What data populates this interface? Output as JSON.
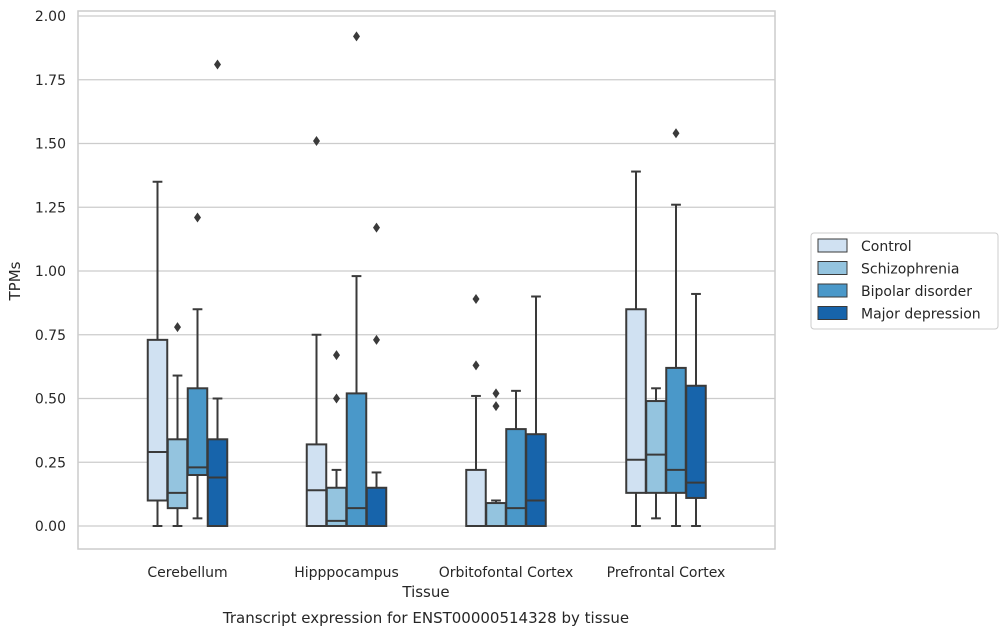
{
  "chart_data": {
    "type": "boxplot",
    "title": "Transcript expression for ENST00000514328 by tissue",
    "xlabel": "Tissue",
    "ylabel": "TPMs",
    "ylim": [
      -0.09,
      2.02
    ],
    "yticks": [
      "0.00",
      "0.25",
      "0.50",
      "0.75",
      "1.00",
      "1.25",
      "1.50",
      "1.75",
      "2.00"
    ],
    "grid": "horizontal",
    "legend_position": "right",
    "categories": [
      "Cerebellum",
      "Hipppocampus",
      "Orbitofontal Cortex",
      "Prefrontal Cortex"
    ],
    "series": [
      {
        "name": "Control",
        "color": "#d0e1f2",
        "boxes": [
          {
            "whislo": 0.0,
            "q1": 0.1,
            "med": 0.29,
            "q3": 0.73,
            "whishi": 1.35,
            "fliers": []
          },
          {
            "whislo": 0.0,
            "q1": 0.0,
            "med": 0.14,
            "q3": 0.32,
            "whishi": 0.75,
            "fliers": [
              1.51
            ]
          },
          {
            "whislo": 0.0,
            "q1": 0.0,
            "med": 0.0,
            "q3": 0.22,
            "whishi": 0.51,
            "fliers": [
              0.63,
              0.89
            ]
          },
          {
            "whislo": 0.0,
            "q1": 0.13,
            "med": 0.26,
            "q3": 0.85,
            "whishi": 1.39,
            "fliers": []
          }
        ]
      },
      {
        "name": "Schizophrenia",
        "color": "#94c4df",
        "boxes": [
          {
            "whislo": 0.0,
            "q1": 0.07,
            "med": 0.13,
            "q3": 0.34,
            "whishi": 0.59,
            "fliers": [
              0.78
            ]
          },
          {
            "whislo": 0.0,
            "q1": 0.0,
            "med": 0.02,
            "q3": 0.15,
            "whishi": 0.22,
            "fliers": [
              0.5,
              0.67
            ]
          },
          {
            "whislo": 0.0,
            "q1": 0.0,
            "med": 0.0,
            "q3": 0.09,
            "whishi": 0.1,
            "fliers": [
              0.47,
              0.52
            ]
          },
          {
            "whislo": 0.03,
            "q1": 0.13,
            "med": 0.28,
            "q3": 0.49,
            "whishi": 0.54,
            "fliers": []
          }
        ]
      },
      {
        "name": "Bipolar disorder",
        "color": "#4a98c9",
        "boxes": [
          {
            "whislo": 0.03,
            "q1": 0.2,
            "med": 0.23,
            "q3": 0.54,
            "whishi": 0.85,
            "fliers": [
              1.21
            ]
          },
          {
            "whislo": 0.0,
            "q1": 0.0,
            "med": 0.07,
            "q3": 0.52,
            "whishi": 0.98,
            "fliers": [
              1.92
            ]
          },
          {
            "whislo": 0.0,
            "q1": 0.0,
            "med": 0.07,
            "q3": 0.38,
            "whishi": 0.53,
            "fliers": []
          },
          {
            "whislo": 0.0,
            "q1": 0.13,
            "med": 0.22,
            "q3": 0.62,
            "whishi": 1.26,
            "fliers": [
              1.54
            ]
          }
        ]
      },
      {
        "name": "Major depression",
        "color": "#1764ab",
        "boxes": [
          {
            "whislo": 0.0,
            "q1": 0.0,
            "med": 0.19,
            "q3": 0.34,
            "whishi": 0.5,
            "fliers": [
              1.81
            ]
          },
          {
            "whislo": 0.0,
            "q1": 0.0,
            "med": 0.0,
            "q3": 0.15,
            "whishi": 0.21,
            "fliers": [
              0.73,
              1.17
            ]
          },
          {
            "whislo": 0.0,
            "q1": 0.0,
            "med": 0.1,
            "q3": 0.36,
            "whishi": 0.9,
            "fliers": []
          },
          {
            "whislo": 0.0,
            "q1": 0.11,
            "med": 0.17,
            "q3": 0.55,
            "whishi": 0.91,
            "fliers": []
          }
        ]
      }
    ]
  }
}
